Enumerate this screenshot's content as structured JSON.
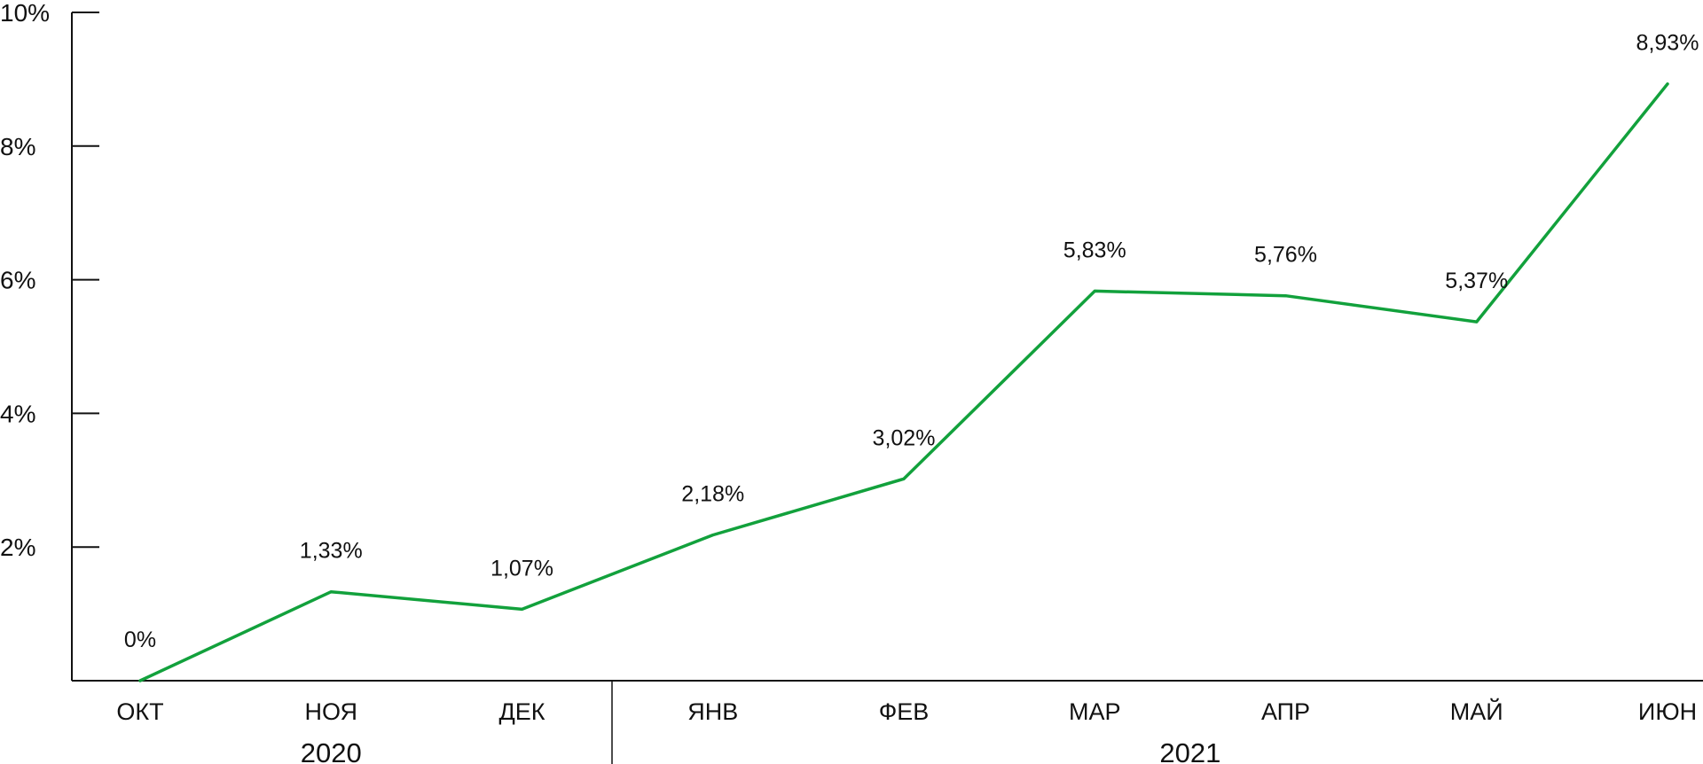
{
  "colors": {
    "line": "#12a13c",
    "axis": "#111111",
    "text": "#111111"
  },
  "chart_data": {
    "type": "line",
    "categories": [
      "ОКТ",
      "НОЯ",
      "ДЕК",
      "ЯНВ",
      "ФЕВ",
      "МАР",
      "АПР",
      "МАЙ",
      "ИЮН"
    ],
    "values": [
      0,
      1.33,
      1.07,
      2.18,
      3.02,
      5.83,
      5.76,
      5.37,
      8.93
    ],
    "data_labels": [
      "0%",
      "1,33%",
      "1,07%",
      "2,18%",
      "3,02%",
      "5,83%",
      "5,76%",
      "5,37%",
      "8,93%"
    ],
    "ylim": [
      0,
      10
    ],
    "y_ticks": [
      2,
      4,
      6,
      8,
      10
    ],
    "y_tick_labels": [
      "2%",
      "4%",
      "6%",
      "8%",
      "10%"
    ],
    "year_groups": [
      {
        "label": "2020",
        "start": 0,
        "end": 2
      },
      {
        "label": "2021",
        "start": 3,
        "end": 8
      }
    ],
    "title": "",
    "xlabel": "",
    "ylabel": "",
    "grid": false,
    "legend": "none"
  }
}
